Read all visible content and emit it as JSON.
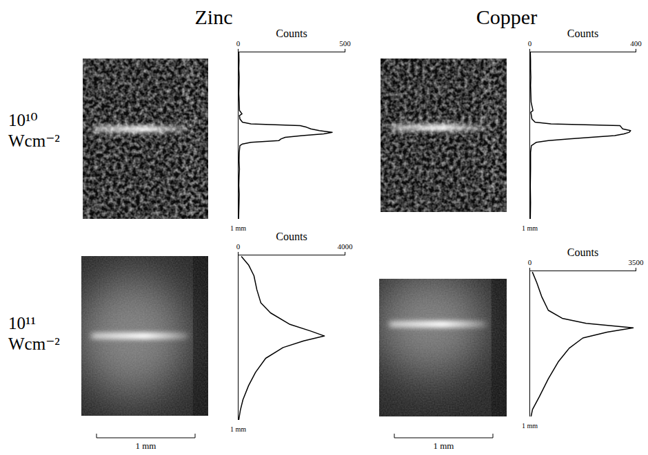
{
  "columns": [
    "Zinc",
    "Copper"
  ],
  "rows": [
    "10¹⁰ Wcm⁻²",
    "10¹¹ Wcm⁻²"
  ],
  "scale_bar": "1 mm",
  "chart_data": [
    {
      "type": "line",
      "orientation": "horizontal",
      "xlabel": "Counts",
      "color": "#000000",
      "xlim": [
        0,
        500
      ],
      "xticks": [
        0,
        500
      ],
      "ylim": [
        0,
        1
      ],
      "yticks": [
        {
          "value": 1,
          "label": "1 mm"
        }
      ],
      "y": [
        0,
        0.05,
        0.1,
        0.15,
        0.2,
        0.25,
        0.3,
        0.35,
        0.37,
        0.38,
        0.4,
        0.42,
        0.43,
        0.44,
        0.45,
        0.46,
        0.47,
        0.48,
        0.49,
        0.5,
        0.51,
        0.52,
        0.53,
        0.54,
        0.55,
        0.56,
        0.6,
        0.65,
        0.7,
        0.75,
        0.8,
        0.85,
        0.9,
        0.95,
        1
      ],
      "values": [
        3,
        4,
        3,
        5,
        4,
        3,
        5,
        6,
        18,
        6,
        8,
        20,
        60,
        290,
        320,
        340,
        380,
        440,
        400,
        300,
        220,
        200,
        190,
        60,
        20,
        8,
        5,
        4,
        6,
        4,
        3,
        5,
        4,
        3,
        2
      ]
    },
    {
      "type": "line",
      "orientation": "horizontal",
      "xlabel": "Counts",
      "color": "#000000",
      "xlim": [
        0,
        400
      ],
      "xticks": [
        0,
        400
      ],
      "ylim": [
        0,
        1
      ],
      "yticks": [
        {
          "value": 1,
          "label": "1 mm"
        }
      ],
      "y": [
        0,
        0.05,
        0.1,
        0.15,
        0.2,
        0.25,
        0.3,
        0.35,
        0.36,
        0.4,
        0.42,
        0.43,
        0.44,
        0.45,
        0.46,
        0.47,
        0.48,
        0.49,
        0.5,
        0.51,
        0.52,
        0.53,
        0.54,
        0.56,
        0.6,
        0.7,
        0.8,
        0.9,
        1
      ],
      "values": [
        2,
        3,
        3,
        4,
        3,
        4,
        5,
        12,
        4,
        8,
        20,
        80,
        340,
        345,
        350,
        380,
        375,
        355,
        320,
        230,
        150,
        70,
        25,
        6,
        3,
        3,
        2,
        3,
        2
      ]
    },
    {
      "type": "line",
      "orientation": "horizontal",
      "xlabel": "Counts",
      "color": "#000000",
      "xlim": [
        0,
        4000
      ],
      "xticks": [
        0,
        4000
      ],
      "ylim": [
        0,
        1
      ],
      "yticks": [
        {
          "value": 1,
          "label": "1 mm"
        }
      ],
      "y": [
        0.01,
        0.06,
        0.125,
        0.21,
        0.29,
        0.35,
        0.42,
        0.46,
        0.49,
        0.52,
        0.56,
        0.625,
        0.71,
        0.79,
        0.875,
        0.94,
        1
      ],
      "values": [
        130,
        390,
        590,
        700,
        850,
        1210,
        1940,
        2710,
        3230,
        2450,
        1680,
        1030,
        650,
        390,
        180,
        80,
        20
      ]
    },
    {
      "type": "line",
      "orientation": "horizontal",
      "xlabel": "Counts",
      "color": "#000000",
      "xlim": [
        0,
        3500
      ],
      "xticks": [
        0,
        3500
      ],
      "ylim": [
        0,
        1
      ],
      "yticks": [
        {
          "value": 1,
          "label": "1 mm"
        }
      ],
      "y": [
        0.01,
        0.08,
        0.175,
        0.27,
        0.325,
        0.36,
        0.39,
        0.42,
        0.46,
        0.53,
        0.62,
        0.74,
        0.86,
        0.95,
        1
      ],
      "values": [
        90,
        230,
        390,
        610,
        1070,
        1860,
        3410,
        2550,
        1750,
        1300,
        950,
        610,
        320,
        90,
        40
      ]
    }
  ]
}
